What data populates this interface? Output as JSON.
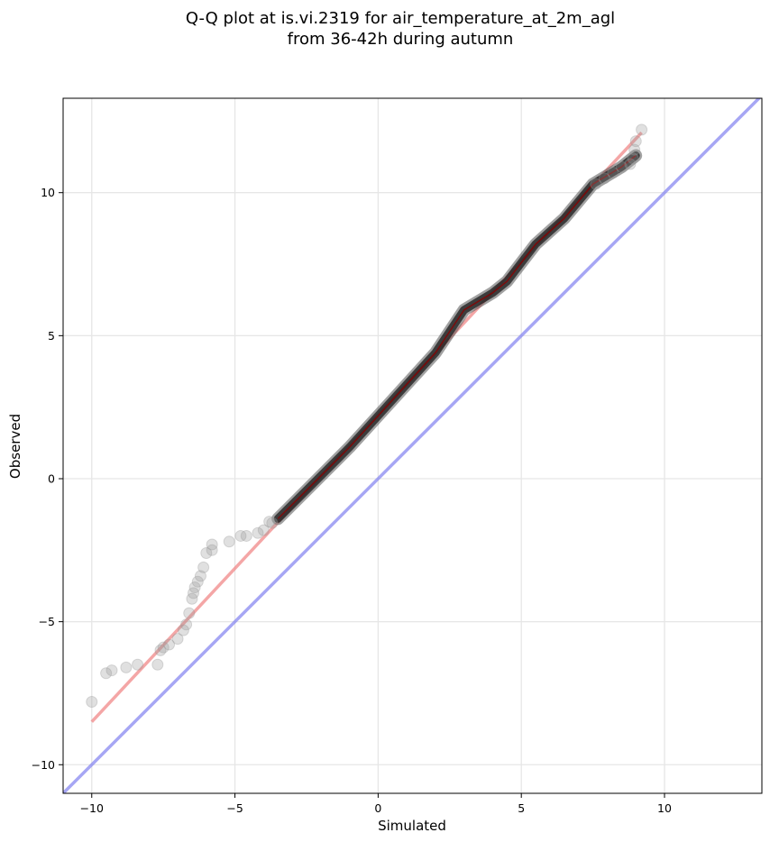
{
  "chart_data": {
    "type": "scatter",
    "title": "Q-Q plot at is.vi.2319 for air_temperature_at_2m_agl",
    "subtitle": "from 36-42h during autumn",
    "xlabel": "Simulated",
    "ylabel": "Observed",
    "xlim": [
      -11,
      13.4
    ],
    "ylim": [
      -11,
      13.3
    ],
    "x_ticks": [
      -10,
      -5,
      0,
      5,
      10
    ],
    "y_ticks": [
      -10,
      -5,
      0,
      5,
      10
    ],
    "x_tick_labels": [
      "−10",
      "−5",
      "0",
      "5",
      "10"
    ],
    "y_tick_labels": [
      "−10",
      "−5",
      "0",
      "5",
      "10"
    ],
    "grid": true,
    "colors": {
      "points": "#333333",
      "fit_line": "#f08080",
      "fit_line_dark": "#8b0000",
      "identity_line": "#8080f0",
      "grid": "#e6e6e6"
    },
    "identity_line": {
      "x": [
        -11,
        13.4
      ],
      "y": [
        -11,
        13.4
      ]
    },
    "fit_line": {
      "x": [
        -10,
        9.2
      ],
      "y": [
        -8.5,
        12.1
      ]
    },
    "quantile_curve": {
      "x": [
        -3.5,
        -2.8,
        -2.0,
        -1.0,
        0.0,
        1.0,
        2.0,
        3.0,
        4.0,
        4.5,
        5.5,
        6.5,
        7.5,
        8.5,
        9.0
      ],
      "y": [
        -1.4,
        -0.7,
        0.1,
        1.1,
        2.2,
        3.3,
        4.4,
        5.9,
        6.5,
        6.9,
        8.2,
        9.1,
        10.3,
        10.9,
        11.3
      ]
    },
    "points": [
      {
        "x": -10.0,
        "y": -7.8
      },
      {
        "x": -9.5,
        "y": -6.8
      },
      {
        "x": -9.3,
        "y": -6.7
      },
      {
        "x": -8.8,
        "y": -6.6
      },
      {
        "x": -8.4,
        "y": -6.5
      },
      {
        "x": -7.7,
        "y": -6.5
      },
      {
        "x": -7.6,
        "y": -6.0
      },
      {
        "x": -7.5,
        "y": -5.9
      },
      {
        "x": -7.3,
        "y": -5.8
      },
      {
        "x": -7.0,
        "y": -5.6
      },
      {
        "x": -6.8,
        "y": -5.3
      },
      {
        "x": -6.7,
        "y": -5.1
      },
      {
        "x": -6.6,
        "y": -4.7
      },
      {
        "x": -6.5,
        "y": -4.2
      },
      {
        "x": -6.45,
        "y": -4.0
      },
      {
        "x": -6.4,
        "y": -3.8
      },
      {
        "x": -6.3,
        "y": -3.6
      },
      {
        "x": -6.2,
        "y": -3.4
      },
      {
        "x": -6.1,
        "y": -3.1
      },
      {
        "x": -6.0,
        "y": -2.6
      },
      {
        "x": -5.8,
        "y": -2.5
      },
      {
        "x": -5.8,
        "y": -2.3
      },
      {
        "x": -5.2,
        "y": -2.2
      },
      {
        "x": -4.8,
        "y": -2.0
      },
      {
        "x": -4.6,
        "y": -2.0
      },
      {
        "x": -4.2,
        "y": -1.9
      },
      {
        "x": -4.0,
        "y": -1.8
      },
      {
        "x": -3.8,
        "y": -1.5
      },
      {
        "x": -3.7,
        "y": -1.55
      },
      {
        "x": 7.6,
        "y": 10.3
      },
      {
        "x": 7.9,
        "y": 10.5
      },
      {
        "x": 8.2,
        "y": 10.7
      },
      {
        "x": 8.5,
        "y": 10.9
      },
      {
        "x": 8.8,
        "y": 11.0
      },
      {
        "x": 8.9,
        "y": 11.2
      },
      {
        "x": 8.95,
        "y": 11.5
      },
      {
        "x": 9.0,
        "y": 11.8
      },
      {
        "x": 9.2,
        "y": 12.2
      }
    ]
  }
}
